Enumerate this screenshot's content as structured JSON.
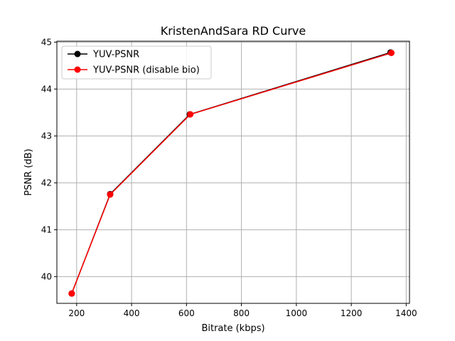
{
  "chart_data": {
    "type": "line",
    "title": "KristenAndSara RD Curve",
    "xlabel": "Bitrate (kbps)",
    "ylabel": "PSNR (dB)",
    "xlim": [
      128,
      1412
    ],
    "ylim": [
      39.43,
      45.02
    ],
    "xticks": [
      200,
      400,
      600,
      800,
      1000,
      1200,
      1400
    ],
    "yticks": [
      40,
      41,
      42,
      43,
      44,
      45
    ],
    "grid": true,
    "legend_position": "upper left",
    "series": [
      {
        "name": "YUV-PSNR",
        "color": "#000000",
        "marker": "circle",
        "x": [
          182,
          322,
          612,
          1343
        ],
        "y": [
          39.64,
          41.76,
          43.46,
          44.78
        ]
      },
      {
        "name": "YUV-PSNR (disable bio)",
        "color": "#ff0000",
        "marker": "circle",
        "x": [
          182,
          322,
          614,
          1346
        ],
        "y": [
          39.64,
          41.75,
          43.46,
          44.77
        ]
      }
    ]
  }
}
